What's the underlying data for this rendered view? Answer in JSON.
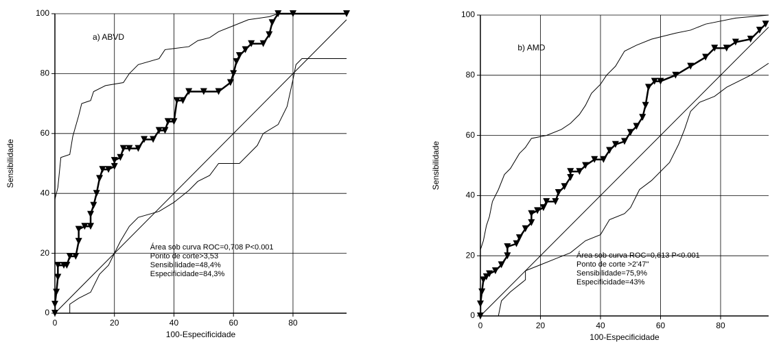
{
  "chart_data": [
    {
      "type": "line",
      "label": "a) ABVD",
      "x_label": "100-Especificidade",
      "y_label": "Sensibilidade",
      "xlim": [
        0,
        98
      ],
      "ylim": [
        0,
        100
      ],
      "xticks": [
        0,
        20,
        40,
        60,
        80
      ],
      "yticks": [
        0,
        20,
        40,
        60,
        80,
        100
      ],
      "grid": true,
      "annotations": [
        "Área sob curva ROC=0,708 P<0.001",
        "Ponto de corte>3,53",
        "Sensibilidade=48,4%",
        "Especificidade=84,3%"
      ],
      "series": [
        {
          "color": "#000",
          "width": 2.5,
          "marker": "triangle-down",
          "x": [
            0,
            0,
            0.5,
            1,
            1,
            3,
            4,
            5,
            7,
            8,
            8,
            10,
            12,
            12,
            13,
            14,
            15,
            16,
            18,
            20,
            20,
            22,
            23,
            25,
            28,
            30,
            33,
            35,
            37,
            38,
            40,
            41,
            43,
            45,
            50,
            55,
            59,
            60,
            61,
            62,
            64,
            66,
            70,
            72,
            73,
            75,
            80,
            98
          ],
          "values": [
            0,
            3,
            7,
            12,
            16,
            16,
            16,
            19,
            19,
            24,
            28,
            29,
            29,
            33,
            36,
            40,
            45,
            48,
            48,
            49,
            51,
            52,
            55,
            55,
            55,
            58,
            58,
            61,
            61,
            64,
            64,
            71,
            71,
            74,
            74,
            74,
            77,
            80,
            84,
            86,
            88,
            90,
            90,
            93,
            97,
            100,
            100,
            100
          ]
        },
        {
          "color": "#000",
          "width": 1,
          "x": [
            0,
            1,
            2,
            5,
            6,
            8,
            9,
            12,
            13,
            17,
            23,
            25,
            28,
            35,
            37,
            45,
            48,
            52,
            55,
            60,
            65,
            72,
            75,
            98
          ],
          "values": [
            38,
            42,
            52,
            53,
            59,
            66,
            70,
            71,
            74,
            76,
            77,
            80,
            83,
            85,
            88,
            89,
            91,
            92,
            94,
            96,
            98,
            99,
            100,
            100
          ]
        },
        {
          "color": "#000",
          "width": 1,
          "x": [
            0,
            5,
            5,
            8,
            12,
            15,
            18,
            20,
            22,
            25,
            28,
            35,
            40,
            45,
            48,
            52,
            55,
            62,
            65,
            68,
            70,
            75,
            78,
            80,
            81,
            83,
            98
          ],
          "values": [
            0,
            0,
            3,
            5,
            7,
            13,
            16,
            20,
            24,
            29,
            32,
            34,
            37,
            41,
            44,
            46,
            50,
            50,
            53,
            56,
            60,
            63,
            69,
            78,
            83,
            85,
            85
          ]
        },
        {
          "color": "#000",
          "width": 1,
          "x": [
            0,
            98
          ],
          "values": [
            0,
            98
          ]
        }
      ]
    },
    {
      "type": "line",
      "label": "b) AMD",
      "x_label": "100-Especificidade",
      "y_label": "Sensibilidade",
      "xlim": [
        0,
        96
      ],
      "ylim": [
        0,
        100
      ],
      "xticks": [
        0,
        20,
        40,
        60,
        80
      ],
      "yticks": [
        0,
        20,
        40,
        60,
        80,
        100
      ],
      "grid": true,
      "annotations": [
        "Área sob curva ROC=0,613  P<0.001",
        "Ponto de corte >2'47\"",
        "Sensibilidade=75,9%",
        "Especificidade=43%"
      ],
      "series": [
        {
          "color": "#000",
          "width": 2.5,
          "marker": "triangle-down",
          "x": [
            0,
            0,
            0.5,
            1,
            2,
            3,
            5,
            7,
            9,
            9,
            12,
            13,
            15,
            17,
            17,
            19,
            21,
            22,
            25,
            26,
            28,
            30,
            30,
            33,
            35,
            38,
            41,
            43,
            45,
            48,
            50,
            52,
            54,
            55,
            56,
            58,
            60,
            65,
            70,
            75,
            78,
            82,
            85,
            90,
            93,
            95
          ],
          "values": [
            0,
            4,
            8,
            12,
            13,
            14,
            15,
            17,
            20,
            23,
            24,
            26,
            29,
            31,
            34,
            35,
            36,
            38,
            38,
            41,
            43,
            46,
            48,
            48,
            50,
            52,
            52,
            55,
            57,
            58,
            61,
            63,
            66,
            70,
            76,
            78,
            78,
            80,
            83,
            86,
            89,
            89,
            91,
            92,
            95,
            97
          ]
        },
        {
          "color": "#000",
          "width": 1,
          "x": [
            0,
            1,
            2,
            3,
            4,
            6,
            8,
            10,
            13,
            15,
            17,
            22,
            27,
            30,
            33,
            35,
            37,
            40,
            42,
            45,
            48,
            52,
            57,
            65,
            70,
            75,
            85,
            96
          ],
          "values": [
            22,
            25,
            30,
            33,
            38,
            42,
            47,
            49,
            54,
            56,
            59,
            60,
            62,
            64,
            67,
            70,
            74,
            77,
            80,
            83,
            88,
            90,
            92,
            94,
            95,
            97,
            99,
            100
          ]
        },
        {
          "color": "#000",
          "width": 1,
          "x": [
            0,
            6,
            7,
            10,
            15,
            15,
            20,
            25,
            30,
            35,
            40,
            43,
            48,
            50,
            53,
            57,
            60,
            63,
            66,
            68,
            70,
            73,
            78,
            82,
            90,
            96
          ],
          "values": [
            0,
            0,
            5,
            8,
            12,
            15,
            17,
            19,
            21,
            25,
            27,
            32,
            34,
            36,
            42,
            45,
            48,
            51,
            57,
            62,
            68,
            71,
            73,
            76,
            80,
            84
          ]
        },
        {
          "color": "#000",
          "width": 1,
          "x": [
            0,
            96
          ],
          "values": [
            0,
            96
          ]
        }
      ]
    }
  ]
}
